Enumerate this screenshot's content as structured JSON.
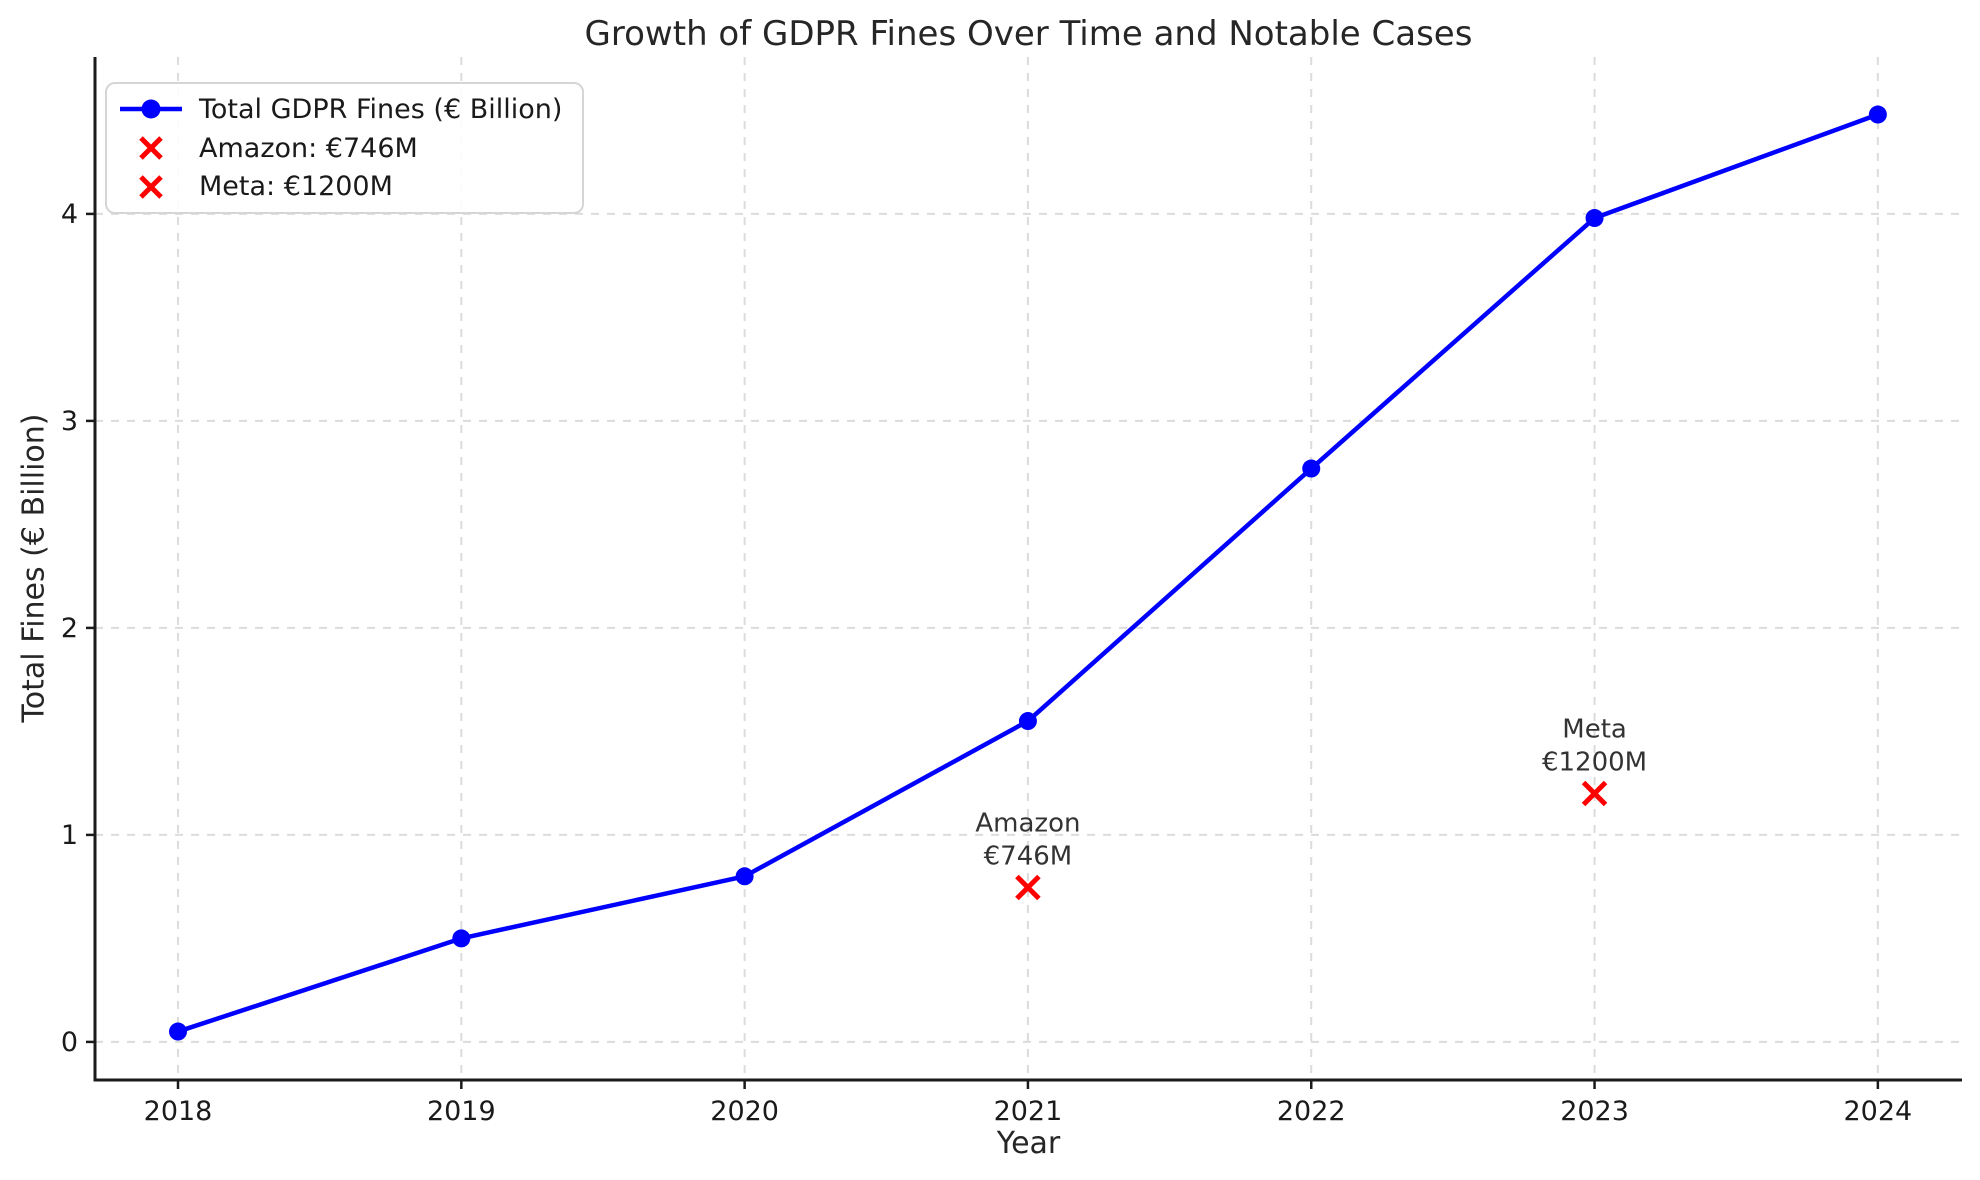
{
  "chart_data": {
    "type": "line",
    "title": "Growth of GDPR Fines Over Time and Notable Cases",
    "xlabel": "Year",
    "ylabel": "Total Fines (€ Billion)",
    "x": [
      2018,
      2019,
      2020,
      2021,
      2022,
      2023,
      2024
    ],
    "series": [
      {
        "name": "Total GDPR Fines (€ Billion)",
        "values": [
          0.05,
          0.5,
          0.8,
          1.55,
          2.77,
          3.98,
          4.48
        ],
        "color": "#0000ff",
        "marker": "circle"
      }
    ],
    "notable_cases": [
      {
        "name": "Amazon",
        "amount_label": "€746M",
        "x": 2021,
        "y": 0.746,
        "color": "#ff0000",
        "marker": "x"
      },
      {
        "name": "Meta",
        "amount_label": "€1200M",
        "x": 2023,
        "y": 1.2,
        "color": "#ff0000",
        "marker": "x"
      }
    ],
    "legend": {
      "position": "upper-left",
      "entries": [
        {
          "label": "Total GDPR Fines (€ Billion)",
          "marker": "line-circle",
          "color": "#0000ff"
        },
        {
          "label": "Amazon: €746M",
          "marker": "x",
          "color": "#ff0000"
        },
        {
          "label": "Meta: €1200M",
          "marker": "x",
          "color": "#ff0000"
        }
      ]
    },
    "xticks": [
      "2018",
      "2019",
      "2020",
      "2021",
      "2022",
      "2023",
      "2024"
    ],
    "yticks": [
      "0",
      "1",
      "2",
      "3",
      "4"
    ],
    "xlim": [
      2017.707,
      2024.297
    ],
    "ylim": [
      -0.184,
      4.758
    ],
    "grid": true,
    "grid_color": "#dcdcdc",
    "spine_color": "#1a1a1a",
    "tick_label_color": "#1a1a1a",
    "annotation_color": "#333333",
    "text_color": "#262626",
    "background": "#ffffff"
  }
}
